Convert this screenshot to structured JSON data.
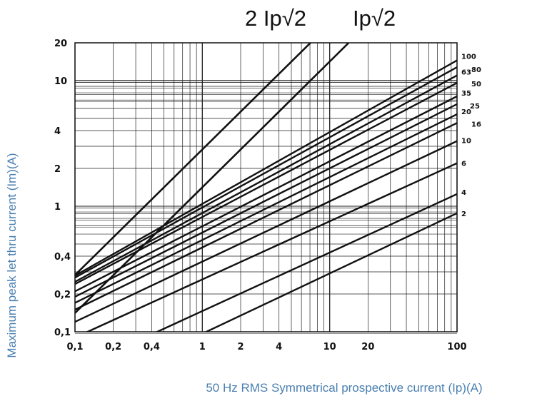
{
  "chart_data": {
    "type": "line",
    "scale": "log-log",
    "xlabel": "50 Hz RMS Symmetrical prospective current (Ip)(A)",
    "ylabel": "Maximum peak let thru current (Im)(A)",
    "xlim": [
      0.1,
      100
    ],
    "ylim": [
      0.1,
      20
    ],
    "x_tick_labels": [
      "0,1",
      "0,2",
      "0,4",
      "1",
      "2",
      "4",
      "10",
      "20",
      "100"
    ],
    "x_tick_values": [
      0.1,
      0.2,
      0.4,
      1,
      2,
      4,
      10,
      20,
      100
    ],
    "y_tick_labels": [
      "0,1",
      "0,2",
      "0,4",
      "1",
      "2",
      "4",
      "10",
      "20"
    ],
    "y_tick_values": [
      0.1,
      0.2,
      0.4,
      1,
      2,
      4,
      10,
      20
    ],
    "grid": true,
    "reference_lines": [
      {
        "name": "2 Ip√2",
        "points": [
          [
            0.1,
            0.283
          ],
          [
            7.07,
            20
          ]
        ]
      },
      {
        "name": "Ip√2",
        "points": [
          [
            0.1,
            0.141
          ],
          [
            14.1,
            20
          ]
        ]
      }
    ],
    "series": [
      {
        "name": "100",
        "points": [
          [
            0.1,
            0.28
          ],
          [
            100,
            14.5
          ]
        ]
      },
      {
        "name": "80",
        "points": [
          [
            0.1,
            0.27
          ],
          [
            100,
            12.8
          ]
        ]
      },
      {
        "name": "63",
        "points": [
          [
            0.1,
            0.25
          ],
          [
            100,
            11
          ]
        ]
      },
      {
        "name": "50",
        "points": [
          [
            0.1,
            0.24
          ],
          [
            100,
            9.6
          ]
        ]
      },
      {
        "name": "35",
        "points": [
          [
            0.1,
            0.21
          ],
          [
            100,
            7.5
          ]
        ]
      },
      {
        "name": "25",
        "points": [
          [
            0.1,
            0.19
          ],
          [
            100,
            6.5
          ]
        ]
      },
      {
        "name": "20",
        "points": [
          [
            0.1,
            0.17
          ],
          [
            100,
            5.4
          ]
        ]
      },
      {
        "name": "16",
        "points": [
          [
            0.1,
            0.15
          ],
          [
            100,
            4.6
          ]
        ]
      },
      {
        "name": "10",
        "points": [
          [
            0.1,
            0.12
          ],
          [
            100,
            3.3
          ]
        ]
      },
      {
        "name": "6",
        "points": [
          [
            0.1,
            0.09
          ],
          [
            100,
            2.2
          ]
        ]
      },
      {
        "name": "4",
        "points": [
          [
            0.1,
            0.05
          ],
          [
            100,
            1.25
          ]
        ]
      },
      {
        "name": "2",
        "points": [
          [
            0.1,
            0.032
          ],
          [
            100,
            0.88
          ]
        ]
      }
    ],
    "top_labels": [
      "2 Ip√2",
      "Ip√2"
    ]
  }
}
